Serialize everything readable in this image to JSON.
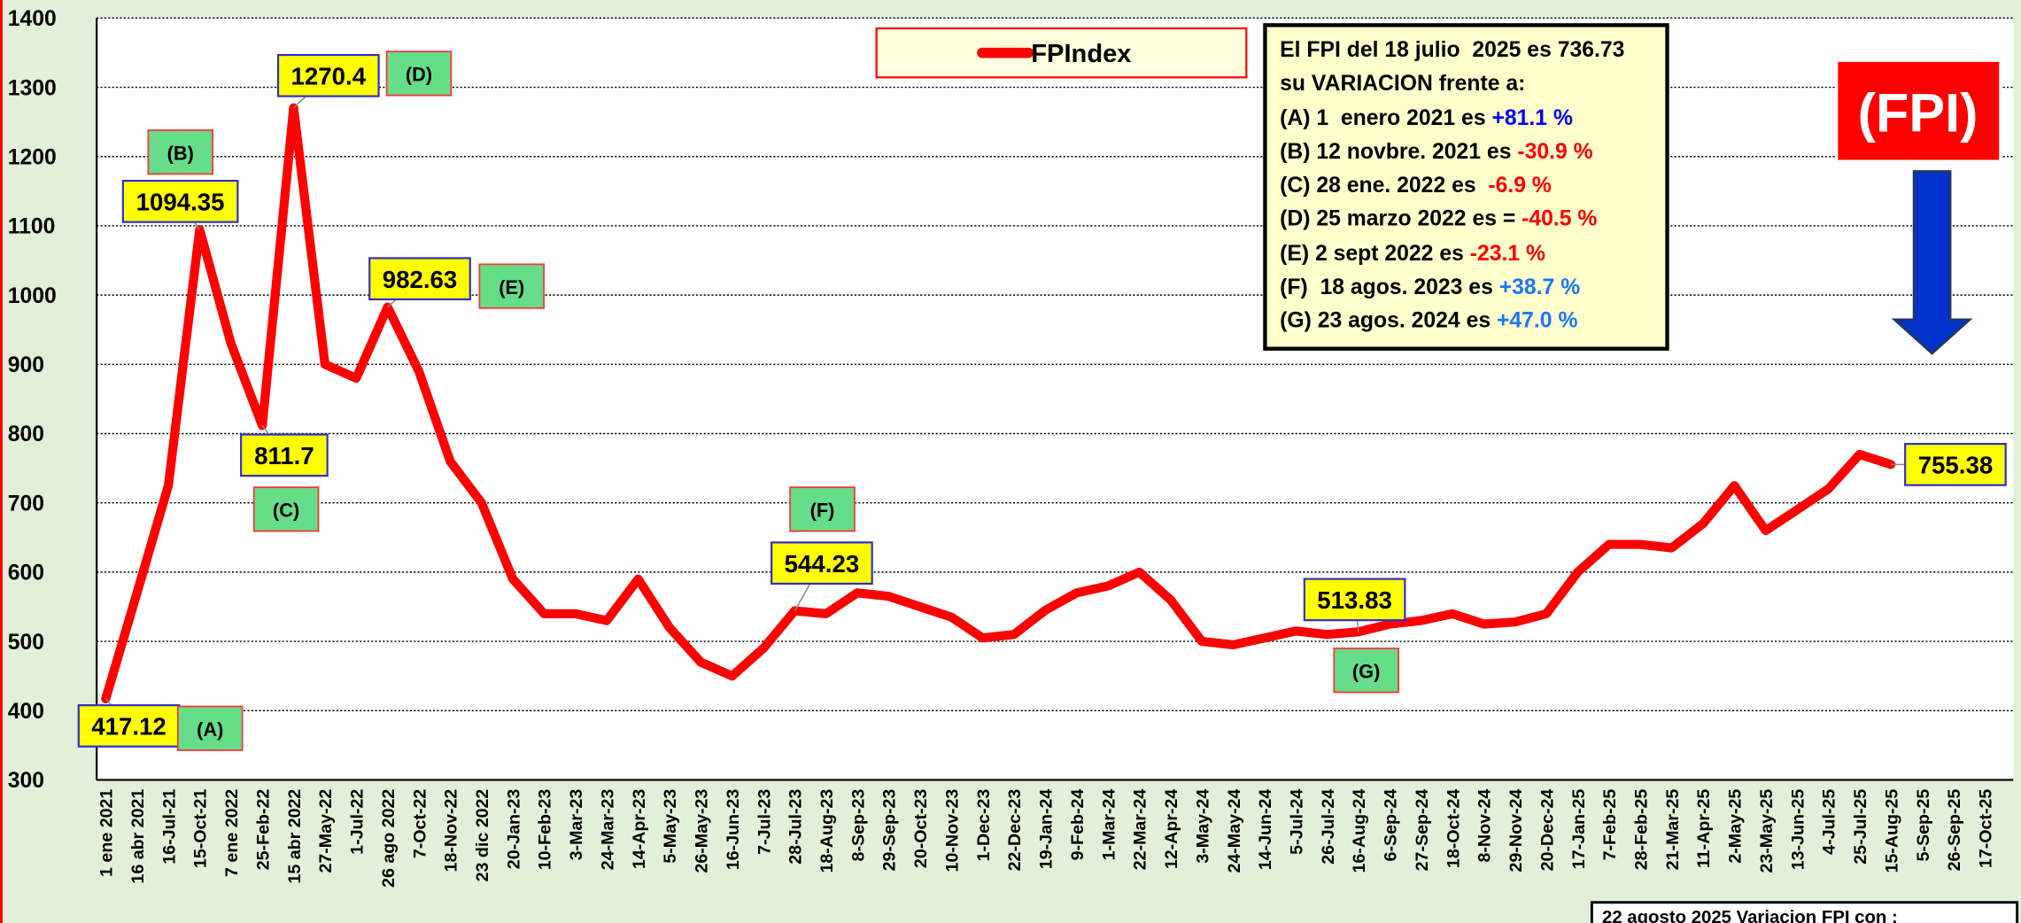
{
  "chart_data": {
    "type": "line",
    "categories": [
      "1 ene 2021",
      "16 abr 2021",
      "16-Jul-21",
      "15-Oct-21",
      "7 ene 2022",
      "25-Feb-22",
      "15 abr 2022",
      "27-May-22",
      "1-Jul-22",
      "26 ago 2022",
      "7-Oct-22",
      "18-Nov-22",
      "23 dic 2022",
      "20-Jan-23",
      "10-Feb-23",
      "3-Mar-23",
      "24-Mar-23",
      "14-Apr-23",
      "5-May-23",
      "26-May-23",
      "16-Jun-23",
      "7-Jul-23",
      "28-Jul-23",
      "18-Aug-23",
      "8-Sep-23",
      "29-Sep-23",
      "20-Oct-23",
      "10-Nov-23",
      "1-Dec-23",
      "22-Dec-23",
      "19-Jan-24",
      "9-Feb-24",
      "1-Mar-24",
      "22-Mar-24",
      "12-Apr-24",
      "3-May-24",
      "24-May-24",
      "14-Jun-24",
      "5-Jul-24",
      "26-Jul-24",
      "16-Aug-24",
      "6-Sep-24",
      "27-Sep-24",
      "18-Oct-24",
      "8-Nov-24",
      "29-Nov-24",
      "20-Dec-24",
      "17-Jan-25",
      "7-Feb-25",
      "28-Feb-25",
      "21-Mar-25",
      "11-Apr-25",
      "2-May-25",
      "23-May-25",
      "13-Jun-25",
      "4-Jul-25",
      "25-Jul-25",
      "15-Aug-25",
      "5-Sep-25",
      "26-Sep-25",
      "17-Oct-25"
    ],
    "series": [
      {
        "name": "FPIndex",
        "color": "#ff0000",
        "values": [
          417.12,
          570,
          725,
          1094.35,
          930,
          811.7,
          1270.4,
          900,
          880,
          982.63,
          890,
          760,
          700,
          590,
          540,
          540,
          530,
          590,
          520,
          470,
          450,
          490,
          544.23,
          540,
          570,
          565,
          550,
          535,
          505,
          510,
          545,
          570,
          580,
          600,
          560,
          500,
          495,
          505,
          515,
          510,
          513.83,
          525,
          530,
          540,
          525,
          528,
          540,
          600,
          640,
          640,
          635,
          670,
          725,
          660,
          690,
          720,
          770,
          755.38,
          null,
          null,
          null
        ],
        "value_labels": [
          "417.12",
          null,
          null,
          "1094.35",
          null,
          "811.7",
          "1270.4",
          null,
          null,
          "982.63",
          null,
          null,
          null,
          null,
          null,
          null,
          null,
          null,
          null,
          null,
          null,
          null,
          "544.23",
          null,
          null,
          null,
          null,
          null,
          null,
          null,
          null,
          null,
          null,
          null,
          null,
          null,
          null,
          null,
          null,
          null,
          "513.83",
          null,
          null,
          null,
          null,
          null,
          null,
          null,
          null,
          null,
          null,
          null,
          null,
          null,
          null,
          null,
          null,
          "755.38",
          null,
          null,
          null
        ]
      }
    ],
    "ylim": [
      300,
      1400
    ],
    "yticks": [
      300,
      400,
      500,
      600,
      700,
      800,
      900,
      1000,
      1100,
      1200,
      1300,
      1400
    ],
    "grid": true,
    "annotations": [
      "(A)",
      "(B)",
      "(C)",
      "(D)",
      "(E)",
      "(F)",
      "(G)",
      "(FPI)"
    ],
    "info_box": {
      "heading": "El FPI del 18 julio  2025 es 736.73 su VARIACION frente a:",
      "items": [
        {
          "text": "(A) 1  enero 2021 es ",
          "change": "+81.1 %",
          "color": "#0000ff"
        },
        {
          "text": "(B) 12 novbre. 2021 es ",
          "change": "-30.9 %",
          "color": "#ff0000"
        },
        {
          "text": "(C) 28 ene. 2022 es  ",
          "change": "-6.9 %",
          "color": "#ff0000"
        },
        {
          "text": "(D) 25 marzo 2022 es = ",
          "change": "-40.5 %",
          "color": "#ff0000"
        },
        {
          "text": "(E) 2 sept 2022 es ",
          "change": "-23.1 %",
          "color": "#ff0000"
        },
        {
          "text": "(F)  18 agos. 2023 es ",
          "change": "+38.7 %",
          "color": "#1a75ff"
        },
        {
          "text": "(G) 23 agos. 2024 es ",
          "change": "+47.0 %",
          "color": "#1a75ff"
        }
      ]
    },
    "footer_box": "22 agosto 2025 Variacion FPI con :"
  }
}
